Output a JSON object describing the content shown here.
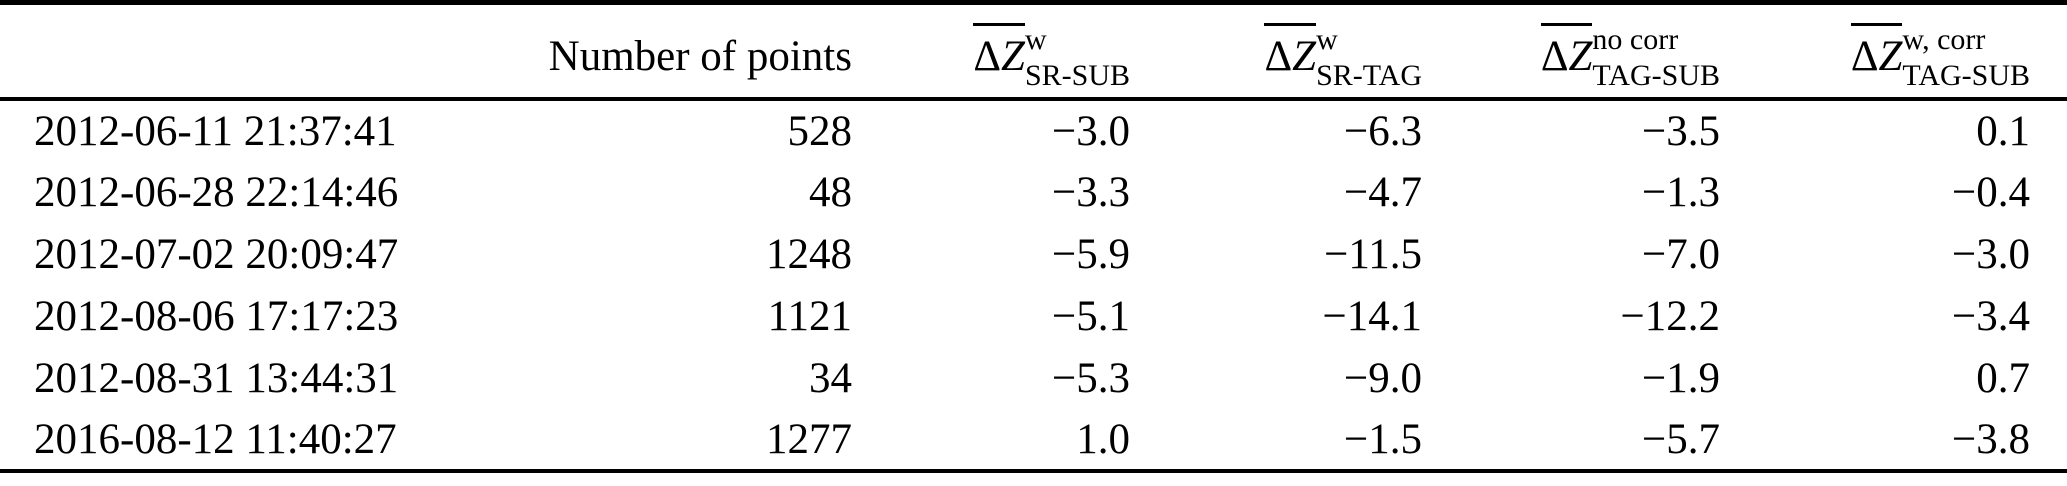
{
  "table": {
    "headers": {
      "col1": "",
      "col2": "Number of points",
      "math": [
        {
          "delta": "Δ",
          "var": "Z",
          "sup": "w",
          "sub": "SR-SUB"
        },
        {
          "delta": "Δ",
          "var": "Z",
          "sup": "w",
          "sub": "SR-TAG"
        },
        {
          "delta": "Δ",
          "var": "Z",
          "sup": "no corr",
          "sub": "TAG-SUB"
        },
        {
          "delta": "Δ",
          "var": "Z",
          "sup": "w, corr",
          "sub": "TAG-SUB"
        }
      ]
    },
    "rows": [
      [
        "2012-06-11 21:37:41",
        "528",
        "−3.0",
        "−6.3",
        "−3.5",
        "0.1"
      ],
      [
        "2012-06-28 22:14:46",
        "48",
        "−3.3",
        "−4.7",
        "−1.3",
        "−0.4"
      ],
      [
        "2012-07-02 20:09:47",
        "1248",
        "−5.9",
        "−11.5",
        "−7.0",
        "−3.0"
      ],
      [
        "2012-08-06 17:17:23",
        "1121",
        "−5.1",
        "−14.1",
        "−12.2",
        "−3.4"
      ],
      [
        "2012-08-31 13:44:31",
        "34",
        "−5.3",
        "−9.0",
        "−1.9",
        "0.7"
      ],
      [
        "2016-08-12 11:40:27",
        "1277",
        "1.0",
        "−1.5",
        "−5.7",
        "−3.8"
      ]
    ]
  },
  "colors": {
    "text": "#000000",
    "background": "#ffffff",
    "rule": "#000000"
  }
}
